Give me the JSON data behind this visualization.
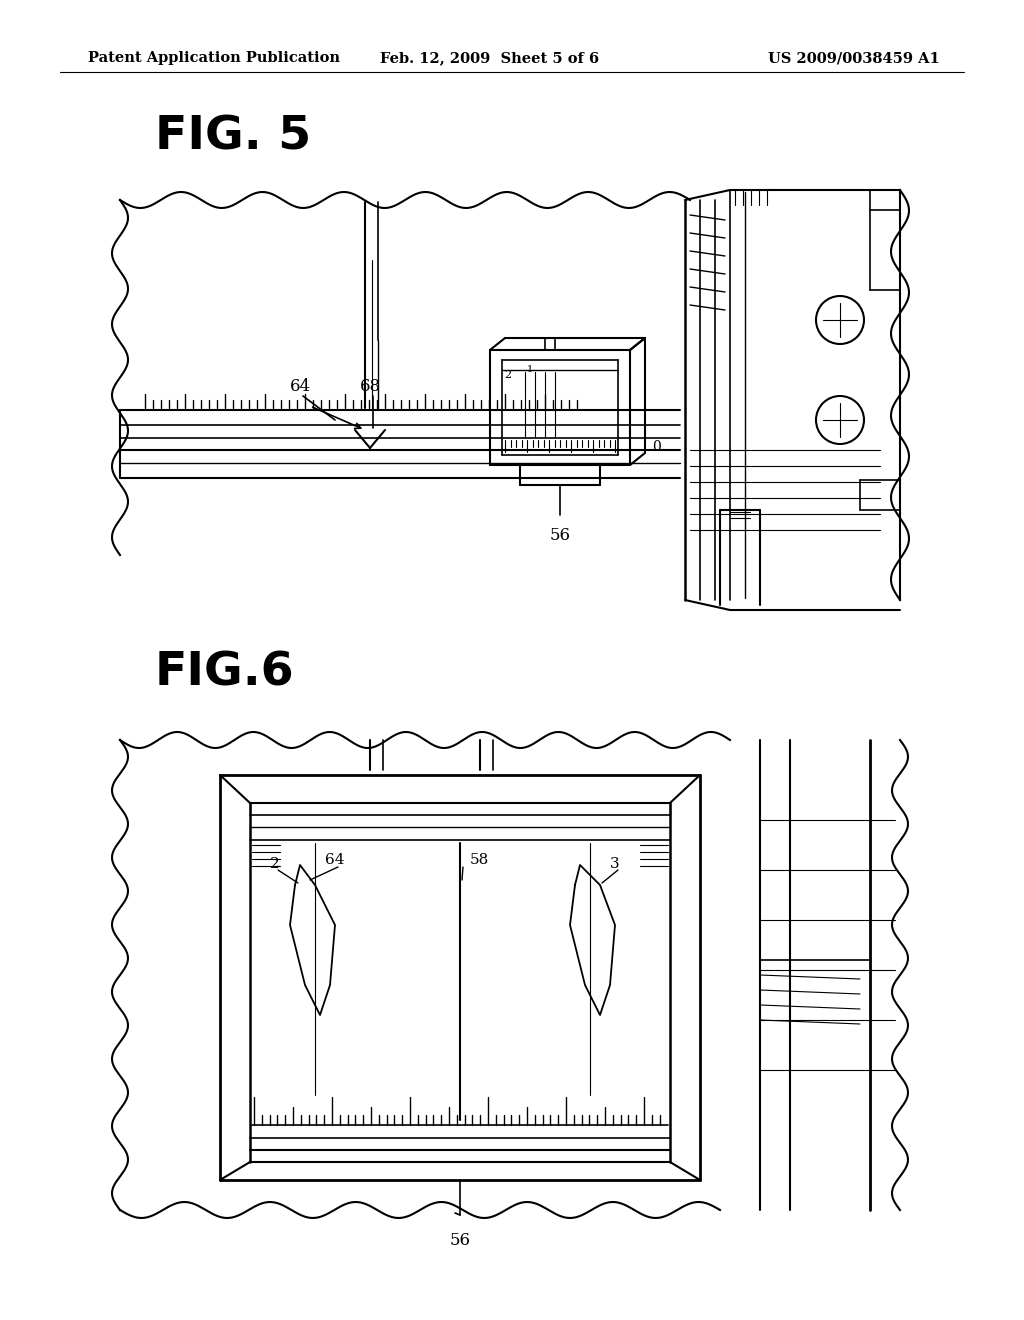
{
  "background_color": "#ffffff",
  "header_left": "Patent Application Publication",
  "header_center": "Feb. 12, 2009  Sheet 5 of 6",
  "header_right": "US 2009/0038459 A1",
  "fig5_label": "FIG. 5",
  "fig6_label": "FIG.6",
  "label_56_fig5": "56",
  "label_56_fig6": "56",
  "label_64_fig5": "64",
  "label_68_fig5": "68",
  "label_2_fig6": "2",
  "label_64_fig6": "64",
  "label_58_fig6": "58",
  "label_3_fig6": "3",
  "label_0_fig5": "0"
}
